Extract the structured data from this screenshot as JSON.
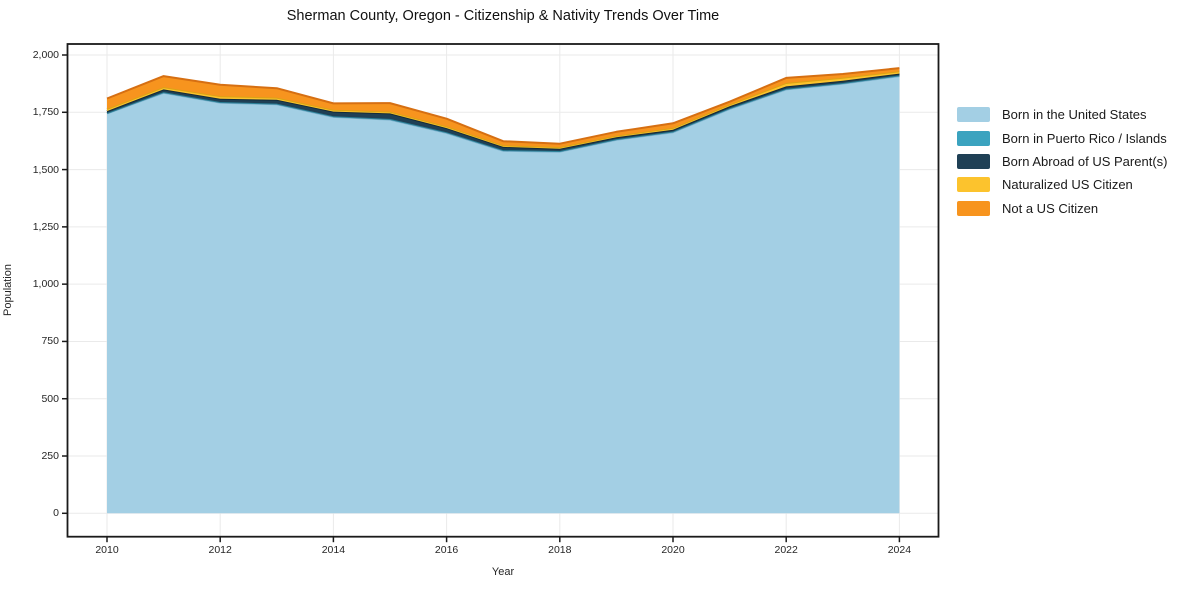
{
  "chart": {
    "title": "Sherman County, Oregon - Citizenship & Nativity Trends Over Time",
    "xlabel": "Year",
    "ylabel": "Population"
  },
  "chart_data": {
    "type": "area",
    "stacked": true,
    "title": "Sherman County, Oregon - Citizenship & Nativity Trends Over Time",
    "xlabel": "Year",
    "ylabel": "Population",
    "grid": true,
    "legend_position": "right",
    "xlim": [
      2009.3,
      2024.7
    ],
    "ylim": [
      0,
      2000
    ],
    "x": [
      2010,
      2011,
      2012,
      2013,
      2014,
      2015,
      2016,
      2017,
      2018,
      2019,
      2020,
      2021,
      2022,
      2023,
      2024
    ],
    "x_ticks": [
      2010,
      2012,
      2014,
      2016,
      2018,
      2020,
      2022,
      2024
    ],
    "x_tick_labels": [
      "2010",
      "2012",
      "2014",
      "2016",
      "2018",
      "2020",
      "2022",
      "2024"
    ],
    "y_ticks": [
      0,
      250,
      500,
      750,
      1000,
      1250,
      1500,
      1750,
      2000
    ],
    "y_tick_labels": [
      "0",
      "250",
      "500",
      "750",
      "1,000",
      "1,250",
      "1,500",
      "1,750",
      "2,000"
    ],
    "series": [
      {
        "name": "Born in the United States",
        "color": "#a3cfe4",
        "edge_color": "#7db1cd",
        "values": [
          1745,
          1835,
          1792,
          1785,
          1730,
          1718,
          1660,
          1582,
          1578,
          1630,
          1663,
          1765,
          1850,
          1875,
          1908
        ]
      },
      {
        "name": "Born in Puerto Rico / Islands",
        "color": "#3ba3bf",
        "edge_color": "#2a7f96",
        "values": [
          2,
          3,
          3,
          3,
          3,
          3,
          3,
          3,
          3,
          3,
          3,
          3,
          3,
          3,
          3
        ]
      },
      {
        "name": "Born Abroad of US Parent(s)",
        "color": "#1f4055",
        "edge_color": "#142b3a",
        "values": [
          8,
          12,
          14,
          17,
          20,
          24,
          18,
          14,
          10,
          8,
          8,
          8,
          10,
          10,
          8
        ]
      },
      {
        "name": "Naturalized US Citizen",
        "color": "#fcc32d",
        "edge_color": "#dba414",
        "values": [
          10,
          10,
          11,
          9,
          8,
          8,
          8,
          7,
          7,
          7,
          8,
          8,
          15,
          13,
          10
        ]
      },
      {
        "name": "Not a US Citizen",
        "color": "#f7941e",
        "edge_color": "#d66f12",
        "values": [
          45,
          48,
          50,
          41,
          28,
          37,
          33,
          18,
          15,
          17,
          20,
          12,
          22,
          16,
          14
        ]
      }
    ]
  }
}
